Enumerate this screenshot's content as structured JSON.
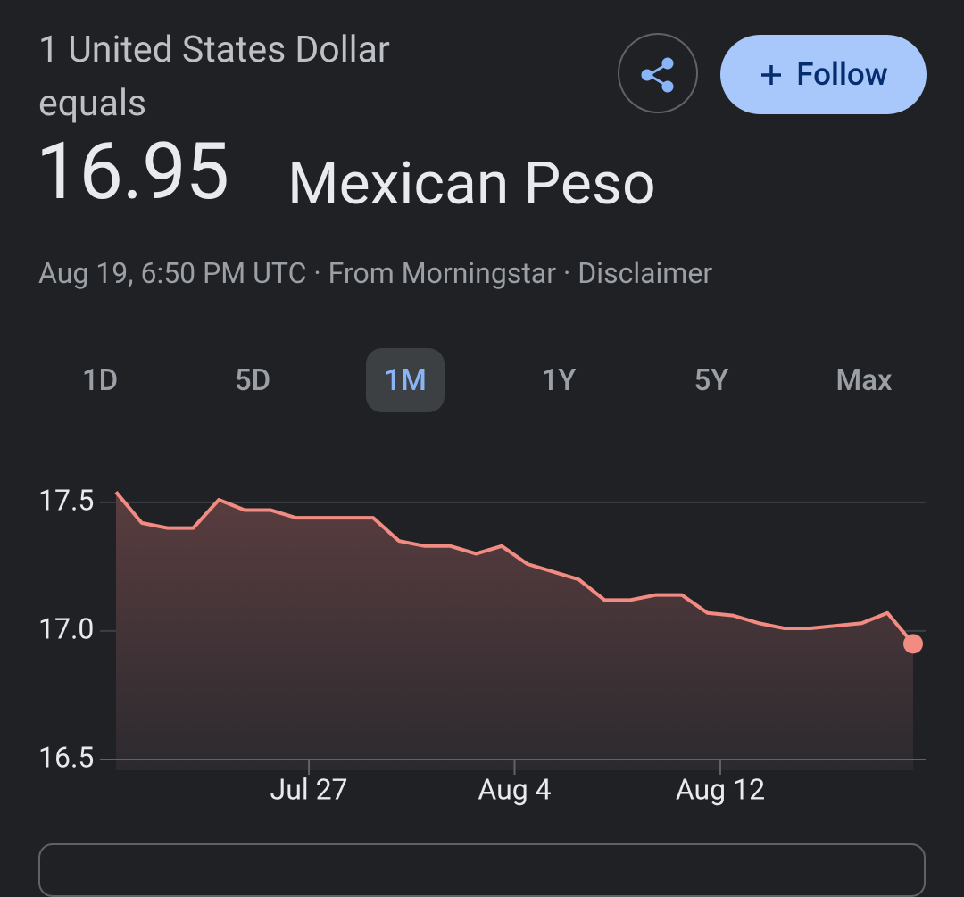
{
  "header": {
    "title": "1 United States Dollar equals",
    "value": "16.95",
    "currency": "Mexican Peso",
    "meta": "Aug 19, 6:50 PM UTC · From Morningstar · Disclaimer",
    "follow": "Follow"
  },
  "ranges": {
    "items": [
      "1D",
      "5D",
      "1M",
      "1Y",
      "5Y",
      "Max"
    ],
    "selected": 2
  },
  "chart_data": {
    "type": "line",
    "color": "#f28b82",
    "grid": true,
    "x": [
      0,
      1,
      2,
      3,
      4,
      5,
      6,
      7,
      8,
      9,
      10,
      11,
      12,
      13,
      14,
      15,
      16,
      17,
      18,
      19,
      20,
      21,
      22,
      23,
      24,
      25,
      26,
      27,
      28,
      29,
      30,
      31
    ],
    "values": [
      17.54,
      17.42,
      17.4,
      17.4,
      17.51,
      17.47,
      17.47,
      17.44,
      17.44,
      17.44,
      17.44,
      17.35,
      17.33,
      17.33,
      17.3,
      17.33,
      17.26,
      17.23,
      17.2,
      17.12,
      17.12,
      17.14,
      17.14,
      17.07,
      17.06,
      17.03,
      17.01,
      17.01,
      17.02,
      17.03,
      17.07,
      16.95
    ],
    "xlim": [
      0,
      31
    ],
    "xticks": [
      {
        "value": 7.5,
        "label": "Jul 27"
      },
      {
        "value": 15.5,
        "label": "Aug 4"
      },
      {
        "value": 23.5,
        "label": "Aug 12"
      }
    ],
    "ylim": [
      16.5,
      17.6
    ],
    "yticks": [
      {
        "value": 16.5,
        "label": "16.5"
      },
      {
        "value": 17.0,
        "label": "17.0"
      },
      {
        "value": 17.5,
        "label": "17.5"
      }
    ]
  }
}
